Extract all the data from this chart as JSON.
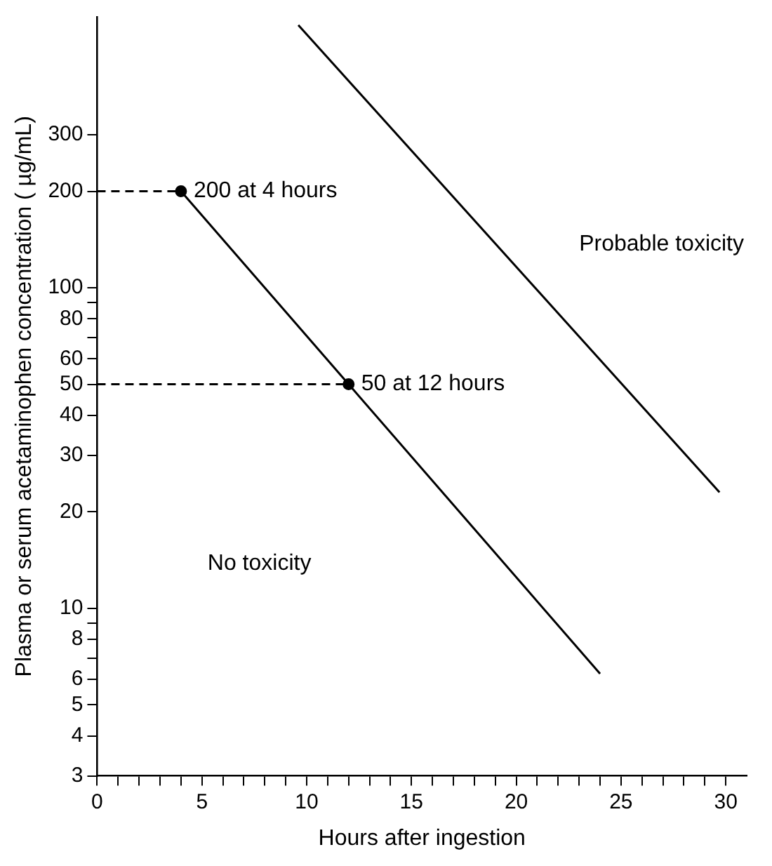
{
  "chart_data": {
    "type": "line",
    "xlabel": "Hours after ingestion",
    "ylabel": "Plasma or serum acetaminophen concentration ( µg/mL)",
    "log": "y",
    "grid": false,
    "legend": false,
    "xlim": [
      0,
      31
    ],
    "ylim": [
      3,
      700
    ],
    "xticks": [
      0,
      {
        "value": 1,
        "label": null
      },
      {
        "value": 2,
        "label": null
      },
      {
        "value": 3,
        "label": null
      },
      {
        "value": 4,
        "label": null
      },
      5,
      {
        "value": 6,
        "label": null
      },
      {
        "value": 7,
        "label": null
      },
      {
        "value": 8,
        "label": null
      },
      {
        "value": 9,
        "label": null
      },
      10,
      {
        "value": 11,
        "label": null
      },
      {
        "value": 12,
        "label": null
      },
      {
        "value": 13,
        "label": null
      },
      {
        "value": 14,
        "label": null
      },
      15,
      {
        "value": 16,
        "label": null
      },
      {
        "value": 17,
        "label": null
      },
      {
        "value": 18,
        "label": null
      },
      {
        "value": 19,
        "label": null
      },
      20,
      {
        "value": 21,
        "label": null
      },
      {
        "value": 22,
        "label": null
      },
      {
        "value": 23,
        "label": null
      },
      {
        "value": 24,
        "label": null
      },
      25,
      {
        "value": 26,
        "label": null
      },
      {
        "value": 27,
        "label": null
      },
      {
        "value": 28,
        "label": null
      },
      {
        "value": 29,
        "label": null
      },
      30
    ],
    "yticks": [
      3,
      4,
      5,
      6,
      {
        "value": 7,
        "label": null
      },
      8,
      {
        "value": 9,
        "label": null
      },
      10,
      20,
      30,
      40,
      50,
      60,
      {
        "value": 70,
        "label": null
      },
      80,
      {
        "value": 90,
        "label": null
      },
      100,
      200,
      300
    ],
    "series": [
      {
        "type": "line",
        "x": [
          4,
          12,
          24
        ],
        "values": [
          200,
          50,
          6.25
        ],
        "color": "#000000",
        "line_style": "solid",
        "marker": "none"
      },
      {
        "type": "line",
        "x": [
          9.6,
          29.7
        ],
        "values": [
          660,
          23
        ],
        "color": "#000000",
        "line_style": "solid",
        "marker": "none"
      },
      {
        "type": "line",
        "x": [
          0,
          4
        ],
        "values": [
          200,
          200
        ],
        "color": "#000000",
        "line_style": "dashed",
        "marker": "none"
      },
      {
        "type": "line",
        "x": [
          0,
          12
        ],
        "values": [
          50,
          50
        ],
        "color": "#000000",
        "line_style": "dashed",
        "marker": "none"
      },
      {
        "type": "scatter",
        "x": [
          4,
          12
        ],
        "values": [
          200,
          50
        ],
        "color": "#000000",
        "marker": "circle"
      }
    ],
    "annotations": [
      {
        "text": "200 at 4 hours",
        "x": 4,
        "y": 200
      },
      {
        "text": "50 at 12 hours",
        "x": 12,
        "y": 50
      },
      "Probable toxicity",
      "No toxicity"
    ]
  }
}
